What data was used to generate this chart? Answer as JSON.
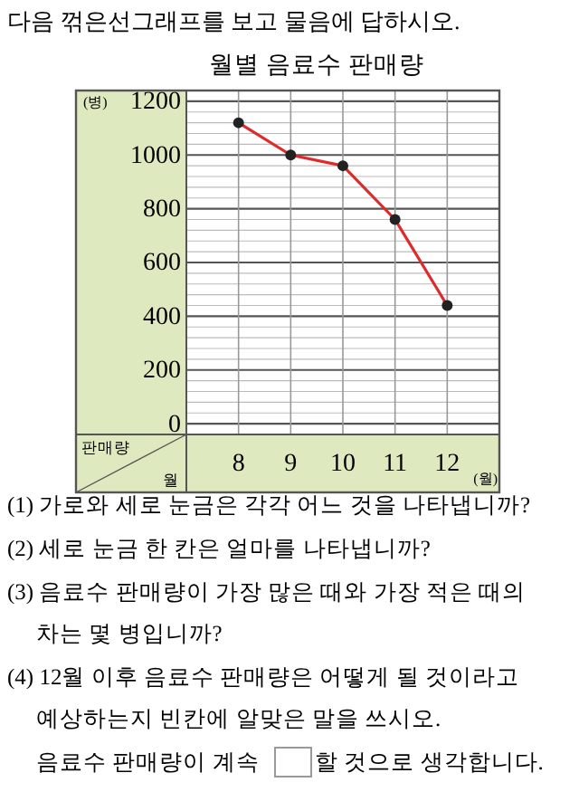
{
  "chart_data": {
    "type": "line",
    "title": "월별 음료수 판매량",
    "xlabel": "(월)",
    "ylabel": "(병)",
    "categories": [
      "8",
      "9",
      "10",
      "11",
      "12"
    ],
    "series": [
      {
        "color": "#e02a2a",
        "values": [
          1120,
          1000,
          960,
          760,
          440
        ]
      }
    ],
    "ylim": [
      -40,
      1240
    ],
    "yticks": [
      0,
      {
        "value": 40,
        "label": null
      },
      {
        "value": 80,
        "label": null
      },
      {
        "value": 120,
        "label": null
      },
      {
        "value": 160,
        "label": null
      },
      200,
      {
        "value": 240,
        "label": null
      },
      {
        "value": 280,
        "label": null
      },
      {
        "value": 320,
        "label": null
      },
      {
        "value": 360,
        "label": null
      },
      400,
      {
        "value": 440,
        "label": null
      },
      {
        "value": 480,
        "label": null
      },
      {
        "value": 520,
        "label": null
      },
      {
        "value": 560,
        "label": null
      },
      600,
      {
        "value": 640,
        "label": null
      },
      {
        "value": 680,
        "label": null
      },
      {
        "value": 720,
        "label": null
      },
      {
        "value": 760,
        "label": null
      },
      800,
      {
        "value": 840,
        "label": null
      },
      {
        "value": 880,
        "label": null
      },
      {
        "value": 920,
        "label": null
      },
      {
        "value": 960,
        "label": null
      },
      1000,
      {
        "value": 1040,
        "label": null
      },
      {
        "value": 1080,
        "label": null
      },
      {
        "value": 1120,
        "label": null
      },
      {
        "value": 1160,
        "label": null
      },
      1200,
      {
        "value": 1240,
        "label": null
      }
    ],
    "grid": true,
    "marker": "circle",
    "annotations": [
      "다음 꺾은선그래프를 보고 물음에 답하시오.",
      "판매량",
      "월",
      "(1) 가로와 세로 눈금은 각각 어느 것을 나타냅니까?",
      "(2) 세로 눈금 한 칸은 얼마를 나타냅니까?",
      "(3) 음료수 판매량이 가장 많은 때와 가장 적은 때의",
      "차는 몇 병입니까?",
      "(4) 12월 이후 음료수 판매량은 어떻게 될 것이라고",
      "예상하는지 빈칸에 알맞은 말을 쓰시오.",
      "음료수 판매량이 계속",
      "할 것으로 생각합니다."
    ]
  }
}
